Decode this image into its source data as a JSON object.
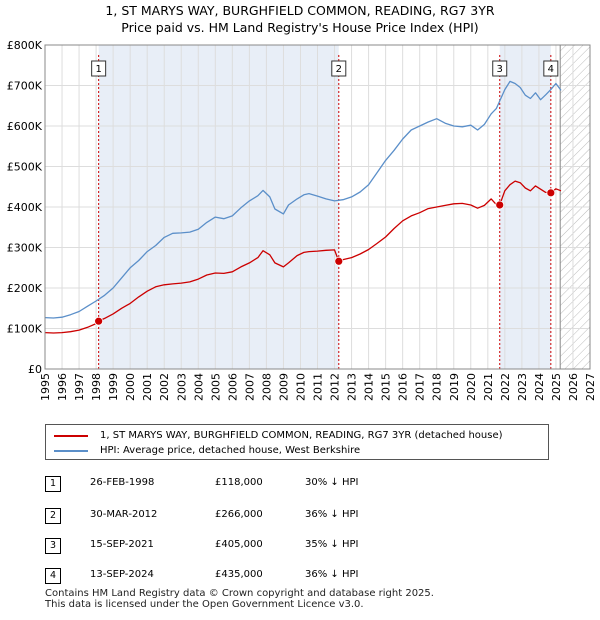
{
  "title_line1": "1, ST MARYS WAY, BURGHFIELD COMMON, READING, RG7 3YR",
  "title_line2": "Price paid vs. HM Land Registry's House Price Index (HPI)",
  "colors": {
    "property": "#cc0000",
    "hpi": "#5b8fc9",
    "shade": "#e8eef7",
    "grid": "#dddddd",
    "marker_line": "#cc0000"
  },
  "chart_data": {
    "type": "line",
    "title": "1, ST MARYS WAY, BURGHFIELD COMMON, READING, RG7 3YR — Price paid vs. HM Land Registry's House Price Index (HPI)",
    "xlabel": "",
    "ylabel": "",
    "xlim": [
      1995,
      2027
    ],
    "ylim": [
      0,
      800000
    ],
    "x_ticks": [
      "1995",
      "1996",
      "1997",
      "1998",
      "1999",
      "2000",
      "2001",
      "2002",
      "2003",
      "2004",
      "2005",
      "2006",
      "2007",
      "2008",
      "2009",
      "2010",
      "2011",
      "2012",
      "2013",
      "2014",
      "2015",
      "2016",
      "2017",
      "2018",
      "2019",
      "2020",
      "2021",
      "2022",
      "2023",
      "2024",
      "2025",
      "2026",
      "2027"
    ],
    "y_ticks": [
      {
        "value": 0,
        "label": "£0"
      },
      {
        "value": 100000,
        "label": "£100K"
      },
      {
        "value": 200000,
        "label": "£200K"
      },
      {
        "value": 300000,
        "label": "£300K"
      },
      {
        "value": 400000,
        "label": "£400K"
      },
      {
        "value": 500000,
        "label": "£500K"
      },
      {
        "value": 600000,
        "label": "£600K"
      },
      {
        "value": 700000,
        "label": "£700K"
      },
      {
        "value": 800000,
        "label": "£800K"
      }
    ],
    "grid": true,
    "forecast_start": 2025.25,
    "shaded_periods": [
      [
        1998.15,
        2012.25
      ],
      [
        2021.7,
        2024.7
      ]
    ],
    "series": [
      {
        "name": "1, ST MARYS WAY, BURGHFIELD COMMON, READING, RG7 3YR (detached house)",
        "color": "#cc0000",
        "x": [
          1995.0,
          1995.5,
          1996.0,
          1996.5,
          1997.0,
          1997.5,
          1998.0,
          1998.15,
          1998.5,
          1999.0,
          1999.5,
          2000.0,
          2000.5,
          2001.0,
          2001.5,
          2002.0,
          2002.5,
          2003.0,
          2003.5,
          2004.0,
          2004.5,
          2005.0,
          2005.5,
          2006.0,
          2006.5,
          2007.0,
          2007.5,
          2007.8,
          2008.2,
          2008.5,
          2009.0,
          2009.3,
          2009.8,
          2010.2,
          2010.5,
          2011.0,
          2011.5,
          2012.0,
          2012.25,
          2012.5,
          2013.0,
          2013.5,
          2014.0,
          2014.5,
          2015.0,
          2015.5,
          2016.0,
          2016.5,
          2017.0,
          2017.5,
          2018.0,
          2018.5,
          2019.0,
          2019.5,
          2020.0,
          2020.4,
          2020.8,
          2021.2,
          2021.5,
          2021.7,
          2022.0,
          2022.3,
          2022.6,
          2022.9,
          2023.2,
          2023.5,
          2023.8,
          2024.1,
          2024.4,
          2024.7,
          2025.0,
          2025.3
        ],
        "values": [
          90000,
          89000,
          90000,
          92000,
          96000,
          103000,
          112000,
          118000,
          125000,
          136000,
          150000,
          162000,
          178000,
          192000,
          203000,
          208000,
          210000,
          212000,
          215000,
          222000,
          232000,
          237000,
          236000,
          240000,
          252000,
          262000,
          275000,
          292000,
          282000,
          262000,
          252000,
          262000,
          280000,
          288000,
          290000,
          291000,
          293000,
          294000,
          266000,
          270000,
          275000,
          284000,
          295000,
          310000,
          326000,
          347000,
          366000,
          378000,
          386000,
          396000,
          400000,
          404000,
          408000,
          409000,
          405000,
          397000,
          404000,
          420000,
          406000,
          405000,
          440000,
          455000,
          464000,
          460000,
          447000,
          440000,
          452000,
          444000,
          436000,
          435000,
          445000,
          440000
        ]
      },
      {
        "name": "HPI: Average price, detached house, West Berkshire",
        "color": "#5b8fc9",
        "x": [
          1995.0,
          1995.5,
          1996.0,
          1996.5,
          1997.0,
          1997.5,
          1998.0,
          1998.5,
          1999.0,
          1999.5,
          2000.0,
          2000.5,
          2001.0,
          2001.5,
          2002.0,
          2002.5,
          2003.0,
          2003.5,
          2004.0,
          2004.5,
          2005.0,
          2005.5,
          2006.0,
          2006.5,
          2007.0,
          2007.5,
          2007.8,
          2008.2,
          2008.5,
          2009.0,
          2009.3,
          2009.8,
          2010.2,
          2010.5,
          2011.0,
          2011.5,
          2012.0,
          2012.5,
          2013.0,
          2013.5,
          2014.0,
          2014.5,
          2015.0,
          2015.5,
          2016.0,
          2016.5,
          2017.0,
          2017.5,
          2018.0,
          2018.5,
          2019.0,
          2019.5,
          2020.0,
          2020.4,
          2020.8,
          2021.2,
          2021.5,
          2022.0,
          2022.3,
          2022.6,
          2022.9,
          2023.2,
          2023.5,
          2023.8,
          2024.1,
          2024.4,
          2024.7,
          2025.0,
          2025.3
        ],
        "values": [
          127000,
          126000,
          128000,
          134000,
          142000,
          155000,
          168000,
          182000,
          200000,
          225000,
          250000,
          268000,
          290000,
          305000,
          325000,
          335000,
          336000,
          338000,
          345000,
          362000,
          375000,
          371000,
          378000,
          398000,
          415000,
          428000,
          441000,
          425000,
          395000,
          383000,
          405000,
          420000,
          430000,
          433000,
          427000,
          420000,
          415000,
          418000,
          425000,
          437000,
          455000,
          485000,
          515000,
          540000,
          568000,
          590000,
          600000,
          610000,
          618000,
          607000,
          600000,
          598000,
          602000,
          590000,
          604000,
          630000,
          643000,
          690000,
          710000,
          705000,
          695000,
          676000,
          668000,
          682000,
          665000,
          677000,
          690000,
          705000,
          688000
        ]
      }
    ],
    "annotations": [
      {
        "label": "1",
        "x": 1998.15,
        "value": 118000
      },
      {
        "label": "2",
        "x": 2012.25,
        "value": 266000
      },
      {
        "label": "3",
        "x": 2021.7,
        "value": 405000
      },
      {
        "label": "4",
        "x": 2024.7,
        "value": 435000
      }
    ]
  },
  "legend": {
    "property": "1, ST MARYS WAY, BURGHFIELD COMMON, READING, RG7 3YR (detached house)",
    "hpi": "HPI: Average price, detached house, West Berkshire"
  },
  "sales": [
    {
      "num": "1",
      "date": "26-FEB-1998",
      "price": "£118,000",
      "hpi": "30% ↓ HPI"
    },
    {
      "num": "2",
      "date": "30-MAR-2012",
      "price": "£266,000",
      "hpi": "36% ↓ HPI"
    },
    {
      "num": "3",
      "date": "15-SEP-2021",
      "price": "£405,000",
      "hpi": "35% ↓ HPI"
    },
    {
      "num": "4",
      "date": "13-SEP-2024",
      "price": "£435,000",
      "hpi": "36% ↓ HPI"
    }
  ],
  "footer": {
    "line1": "Contains HM Land Registry data © Crown copyright and database right 2025.",
    "line2": "This data is licensed under the Open Government Licence v3.0."
  }
}
